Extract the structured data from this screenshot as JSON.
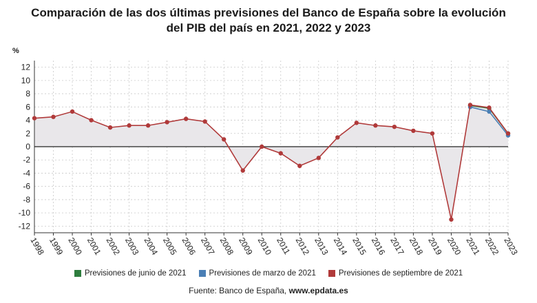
{
  "title_line1": "Comparación de las dos últimas previsiones del Banco de España sobre la evolución",
  "title_line2": "del PIB del país en 2021, 2022 y 2023",
  "unit_label": "%",
  "source_prefix": "Fuente: Banco de España, ",
  "source_site": "www.epdata.es",
  "colors": {
    "junio": "#2e7d3e",
    "marzo": "#4a7fb5",
    "septiembre": "#b03a3a",
    "area": "#e9e7ea",
    "grid": "#c8c8c8",
    "zero": "#222222"
  },
  "chart_data": {
    "type": "line",
    "ylabel": "%",
    "ylim": [
      -13,
      13
    ],
    "yticks": [
      12,
      10,
      8,
      6,
      4,
      2,
      0,
      -2,
      -4,
      -6,
      -8,
      -10,
      -12
    ],
    "grid": true,
    "legend_position": "bottom",
    "x": [
      "1998",
      "1999",
      "2000",
      "2001",
      "2002",
      "2003",
      "2004",
      "2005",
      "2006",
      "2007",
      "2008",
      "2009",
      "2010",
      "2011",
      "2012",
      "2013",
      "2014",
      "2015",
      "2016",
      "2017",
      "2018",
      "2019",
      "2020",
      "2021",
      "2022",
      "2023"
    ],
    "series": [
      {
        "name": "Previsiones de junio de 2021",
        "color": "#2e7d3e",
        "x": [
          "2021",
          "2022",
          "2023"
        ],
        "values": [
          6.2,
          5.8,
          2.0
        ]
      },
      {
        "name": "Previsiones de marzo de 2021",
        "color": "#4a7fb5",
        "x": [
          "2021",
          "2022",
          "2023"
        ],
        "values": [
          6.0,
          5.3,
          1.7
        ]
      },
      {
        "name": "Previsiones de septiembre de 2021",
        "color": "#b03a3a",
        "x": [
          "1998",
          "1999",
          "2000",
          "2001",
          "2002",
          "2003",
          "2004",
          "2005",
          "2006",
          "2007",
          "2008",
          "2009",
          "2010",
          "2011",
          "2012",
          "2013",
          "2014",
          "2015",
          "2016",
          "2017",
          "2018",
          "2019",
          "2020",
          "2021",
          "2022",
          "2023"
        ],
        "values": [
          4.3,
          4.5,
          5.3,
          4.0,
          2.9,
          3.2,
          3.2,
          3.7,
          4.2,
          3.8,
          1.1,
          -3.6,
          0.0,
          -1.0,
          -2.9,
          -1.7,
          1.4,
          3.6,
          3.2,
          3.0,
          2.4,
          2.0,
          -11.0,
          6.3,
          5.9,
          2.0
        ]
      }
    ]
  }
}
